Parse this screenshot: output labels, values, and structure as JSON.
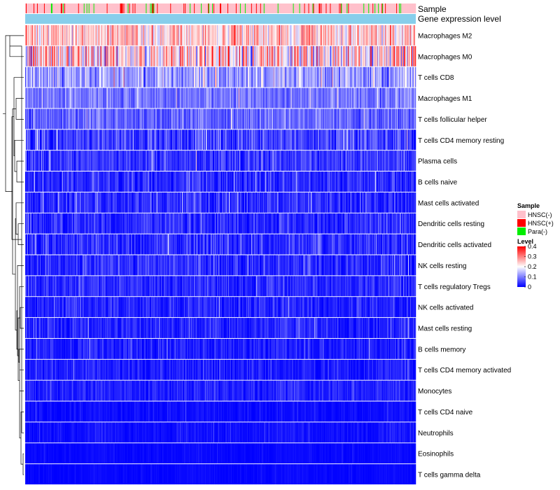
{
  "chart_data": {
    "type": "heatmap",
    "title": "",
    "annotations": [
      {
        "label": "Sample"
      },
      {
        "label": "Gene expression level"
      }
    ],
    "rows": [
      {
        "name": "Macrophages M2",
        "mean": 0.24,
        "spread": 0.09
      },
      {
        "name": "Macrophages M0",
        "mean": 0.22,
        "spread": 0.14
      },
      {
        "name": "T cells CD8",
        "mean": 0.12,
        "spread": 0.08
      },
      {
        "name": "Macrophages M1",
        "mean": 0.09,
        "spread": 0.05
      },
      {
        "name": "T cells follicular helper",
        "mean": 0.08,
        "spread": 0.05
      },
      {
        "name": "T cells CD4 memory resting",
        "mean": 0.05,
        "spread": 0.07
      },
      {
        "name": "Plasma cells",
        "mean": 0.04,
        "spread": 0.05
      },
      {
        "name": "B cells naive",
        "mean": 0.03,
        "spread": 0.05
      },
      {
        "name": "Mast cells activated",
        "mean": 0.03,
        "spread": 0.05
      },
      {
        "name": "Dendritic cells resting",
        "mean": 0.03,
        "spread": 0.05
      },
      {
        "name": "Dendritic cells activated",
        "mean": 0.03,
        "spread": 0.05
      },
      {
        "name": "NK cells resting",
        "mean": 0.03,
        "spread": 0.045
      },
      {
        "name": "T cells regulatory  Tregs",
        "mean": 0.03,
        "spread": 0.04
      },
      {
        "name": "NK cells activated",
        "mean": 0.025,
        "spread": 0.04
      },
      {
        "name": "Mast cells resting",
        "mean": 0.025,
        "spread": 0.04
      },
      {
        "name": "B cells memory",
        "mean": 0.02,
        "spread": 0.04
      },
      {
        "name": "T cells CD4 memory activated",
        "mean": 0.02,
        "spread": 0.035
      },
      {
        "name": "Monocytes",
        "mean": 0.025,
        "spread": 0.03
      },
      {
        "name": "T cells CD4 naive",
        "mean": 0.005,
        "spread": 0.02
      },
      {
        "name": "Neutrophils",
        "mean": 0.01,
        "spread": 0.02
      },
      {
        "name": "Eosinophils",
        "mean": 0.003,
        "spread": 0.01
      },
      {
        "name": "T cells gamma delta",
        "mean": 0.002,
        "spread": 0.01
      }
    ],
    "sample_count": 560,
    "sample_groups": [
      {
        "label": "HNSC(-)",
        "color": "#ffc0cb",
        "share": 0.86
      },
      {
        "label": "HNSC(+)",
        "color": "#ff0000",
        "share": 0.08
      },
      {
        "label": "Para(-)",
        "color": "#00ee00",
        "share": 0.06
      }
    ],
    "gene_expression_color": "#87ceeb",
    "legend": {
      "sample_title": "Sample",
      "level_title": "Level",
      "level_ticks": [
        "0.4",
        "0.3",
        "0.2",
        "0.1",
        "0"
      ],
      "level_tick_values": [
        0.4,
        0.3,
        0.2,
        0.1,
        0
      ],
      "placement": "right"
    },
    "color_scale": {
      "min": 0,
      "max": 0.4,
      "colors": [
        "#0000ff",
        "#ffffff",
        "#ff0000"
      ],
      "stops": [
        0,
        0.2,
        0.4
      ]
    },
    "dendrogram": "row"
  }
}
